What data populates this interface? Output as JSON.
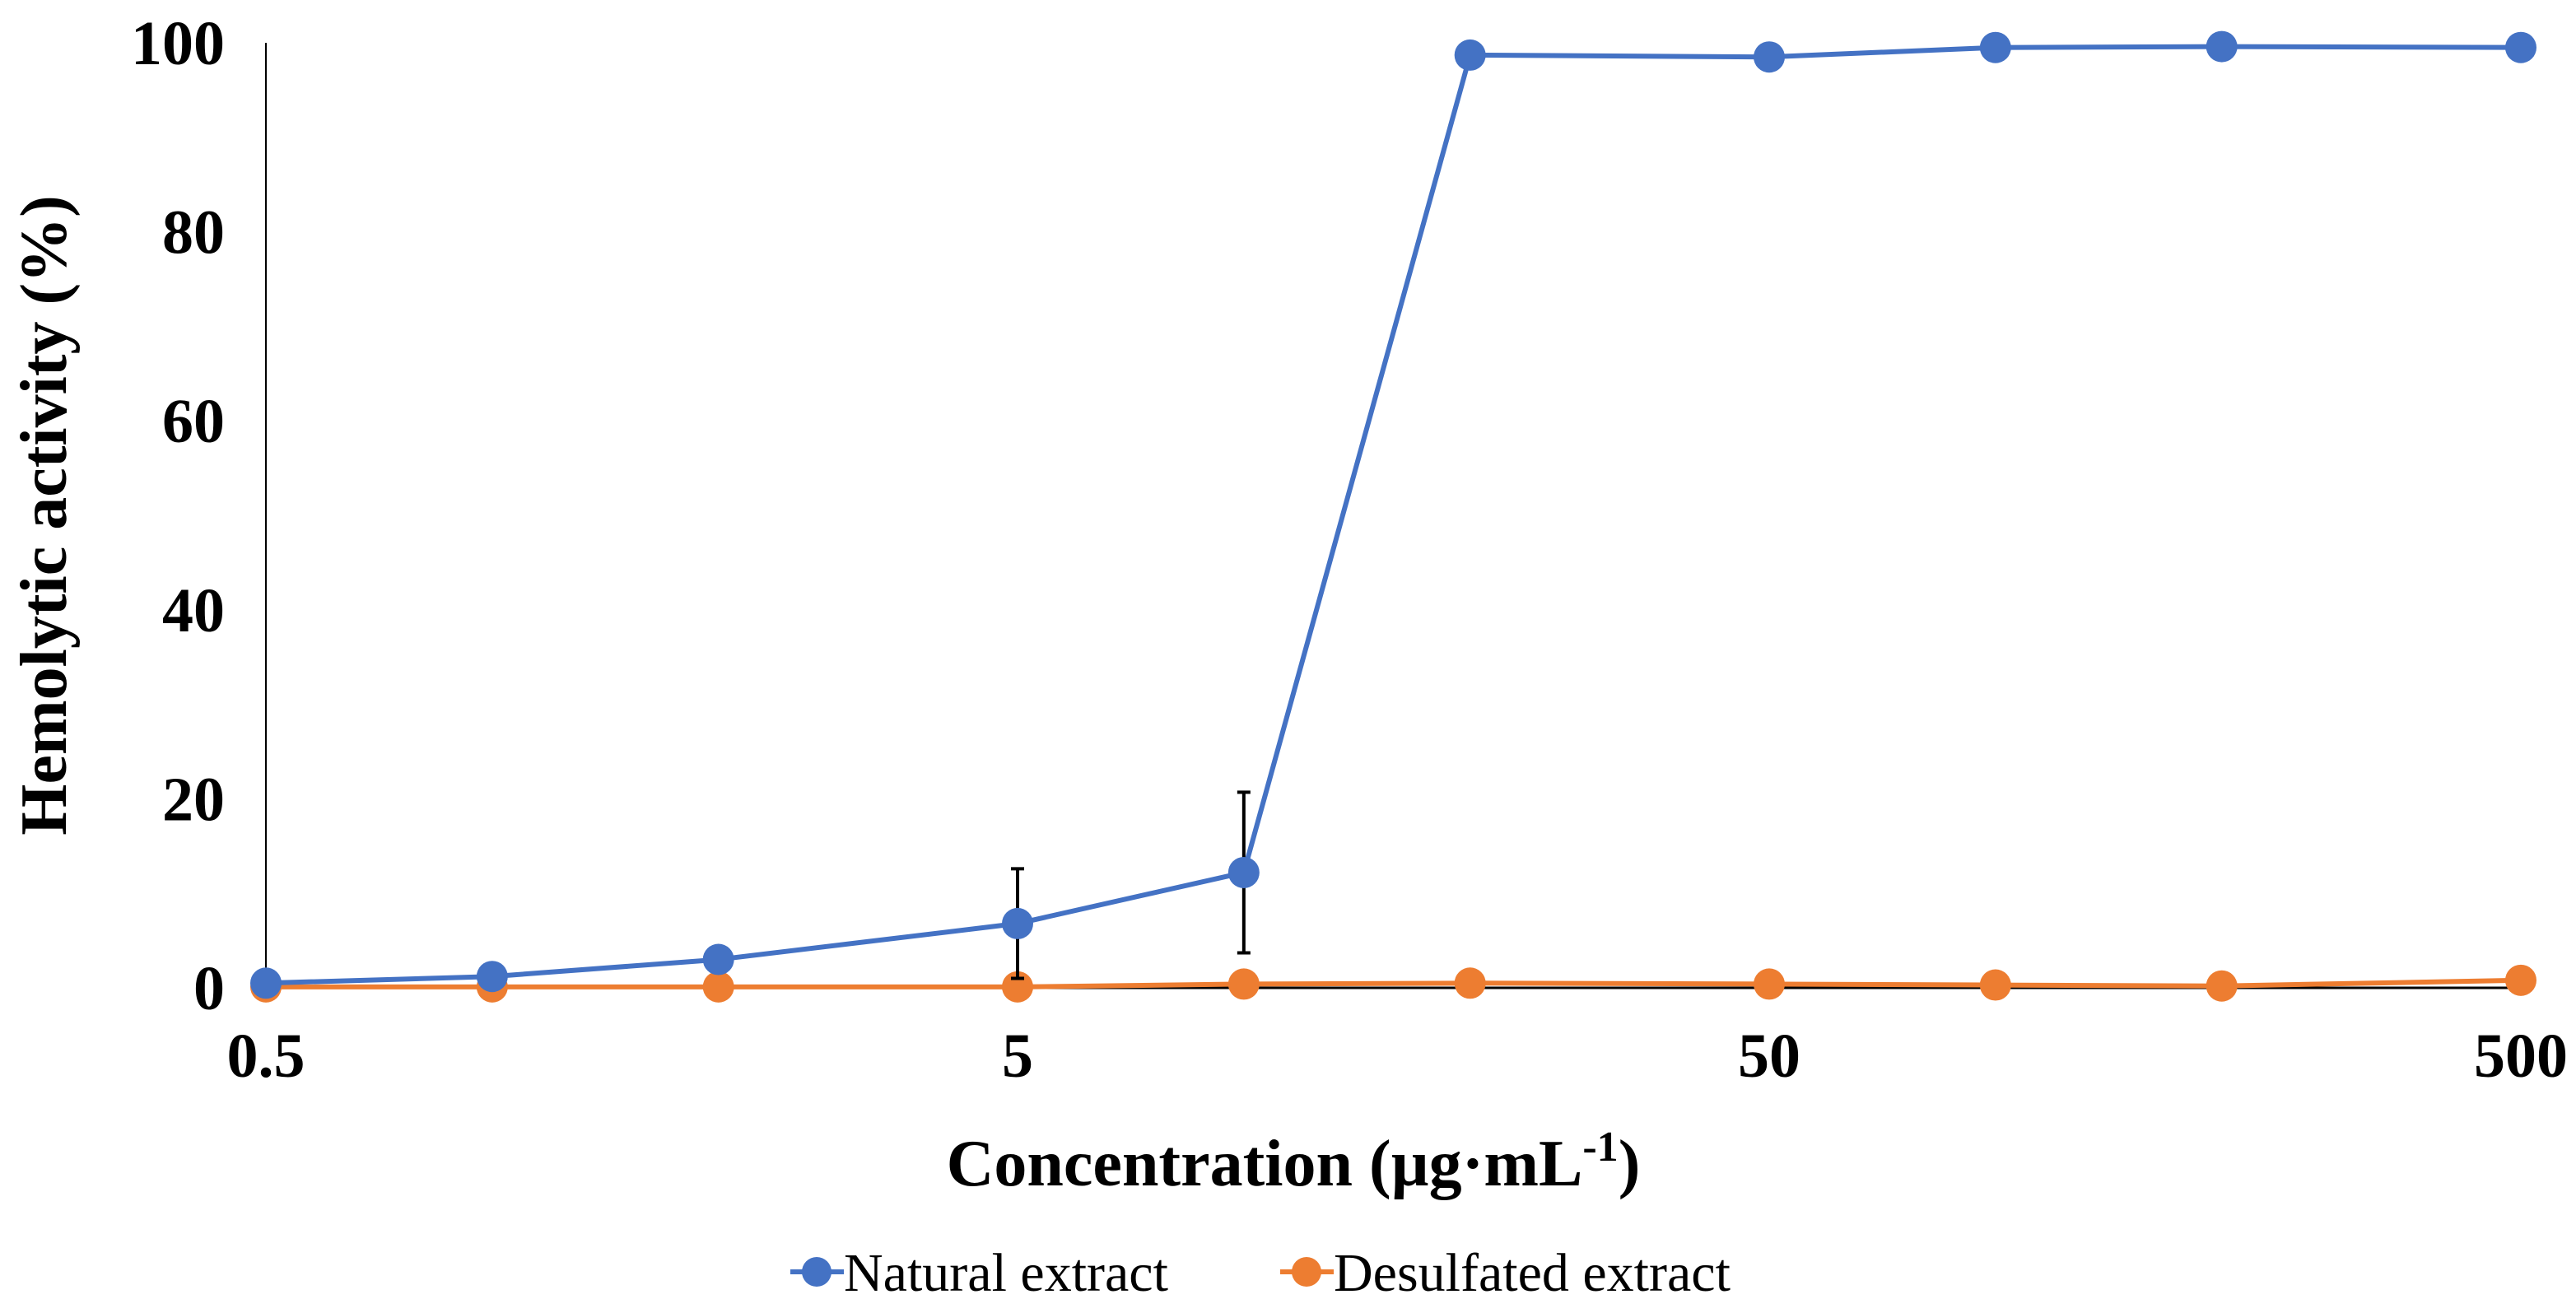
{
  "chart_data": {
    "type": "line",
    "x_scale": "log",
    "x": [
      0.5,
      1,
      2,
      5,
      10,
      20,
      50,
      100,
      200,
      500
    ],
    "xlim": [
      0.5,
      500
    ],
    "ylim": [
      0,
      100
    ],
    "x_tick_values": [
      0.5,
      5,
      50,
      500
    ],
    "x_tick_labels": [
      "0.5",
      "5",
      "50",
      "500"
    ],
    "y_tick_values": [
      0,
      20,
      40,
      60,
      80,
      100
    ],
    "y_tick_labels": [
      "0",
      "20",
      "40",
      "60",
      "80",
      "100"
    ],
    "xlabel_main": "Concentration (µg·mL",
    "xlabel_sup": "-1",
    "xlabel_close": ")",
    "ylabel": "Hemolytic activity (%)",
    "grid": false,
    "legend_position": "bottom-center",
    "series": [
      {
        "name": "Natural extract",
        "color": "#4472C4",
        "values": [
          0.5,
          1.2,
          3.0,
          6.8,
          12.2,
          98.7,
          98.5,
          99.5,
          99.6,
          99.5
        ],
        "error": [
          0,
          0,
          0,
          5.8,
          8.5,
          0,
          0,
          0,
          0,
          0
        ]
      },
      {
        "name": "Desulfated extract",
        "color": "#ED7D31",
        "values": [
          0.1,
          0.1,
          0.1,
          0.1,
          0.4,
          0.5,
          0.4,
          0.3,
          0.2,
          0.8
        ],
        "error": [
          0,
          0,
          0,
          0,
          0,
          0,
          0,
          0,
          0,
          0
        ]
      }
    ]
  }
}
